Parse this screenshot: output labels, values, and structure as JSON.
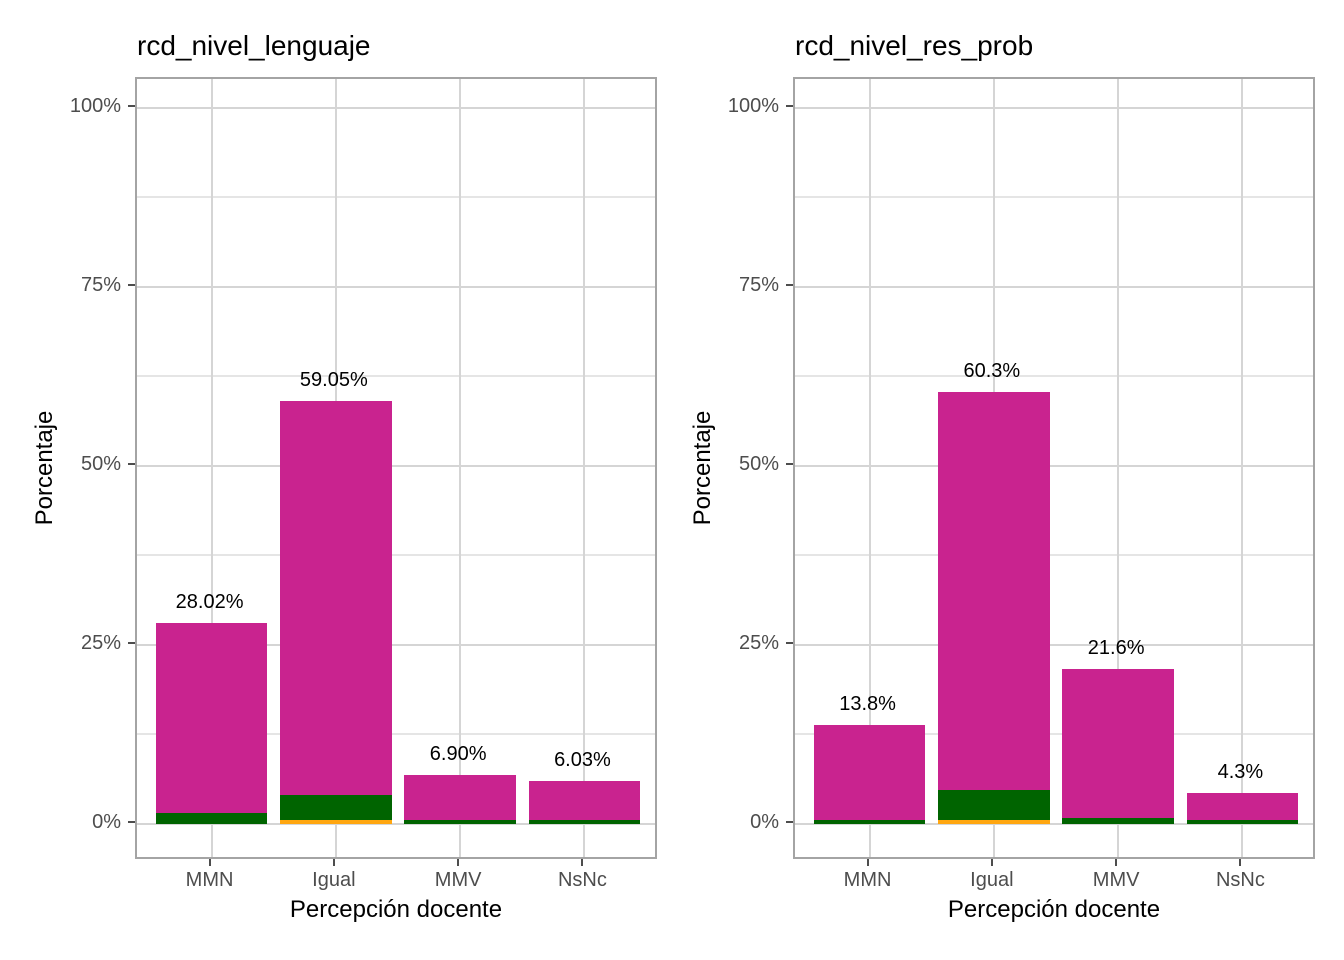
{
  "page": {
    "background": "#ffffff"
  },
  "palette": {
    "magenta": "#c9238f",
    "green": "#006400",
    "orange": "#ffa610",
    "grid_major": "#d5d5d5",
    "grid_minor": "#e5e5e5",
    "panel_border": "#a4a4a4",
    "tick_text": "#4d4d4d",
    "label_text": "#000000"
  },
  "chart_data": [
    {
      "type": "bar",
      "stacked": true,
      "grid": true,
      "legend_position": "none",
      "title": "rcd_nivel_lenguaje",
      "xlabel": "Percepción docente",
      "ylabel": "Porcentaje",
      "ylim": [
        0,
        100
      ],
      "y_ticks": [
        {
          "value": 0,
          "label": "0%"
        },
        {
          "value": 25,
          "label": "25%"
        },
        {
          "value": 50,
          "label": "50%"
        },
        {
          "value": 75,
          "label": "75%"
        },
        {
          "value": 100,
          "label": "100%"
        }
      ],
      "y_minor_ticks": [
        12.5,
        37.5,
        62.5,
        87.5
      ],
      "categories": [
        "MMN",
        "Igual",
        "MMV",
        "NsNc"
      ],
      "series": [
        {
          "name": "segment-orange",
          "color_key": "orange",
          "values": [
            0,
            0.55,
            0,
            0
          ]
        },
        {
          "name": "segment-green",
          "color_key": "green",
          "values": [
            1.55,
            3.5,
            0.6,
            0.6
          ]
        },
        {
          "name": "segment-magenta",
          "color_key": "magenta",
          "values": [
            26.47,
            55.0,
            6.3,
            5.43
          ]
        }
      ],
      "totals": [
        28.02,
        59.05,
        6.9,
        6.03
      ],
      "bar_labels": [
        "28.02%",
        "59.05%",
        "6.90%",
        "6.03%"
      ]
    },
    {
      "type": "bar",
      "stacked": true,
      "grid": true,
      "legend_position": "none",
      "title": "rcd_nivel_res_prob",
      "xlabel": "Percepción docente",
      "ylabel": "Porcentaje",
      "ylim": [
        0,
        100
      ],
      "y_ticks": [
        {
          "value": 0,
          "label": "0%"
        },
        {
          "value": 25,
          "label": "25%"
        },
        {
          "value": 50,
          "label": "50%"
        },
        {
          "value": 75,
          "label": "75%"
        },
        {
          "value": 100,
          "label": "100%"
        }
      ],
      "y_minor_ticks": [
        12.5,
        37.5,
        62.5,
        87.5
      ],
      "categories": [
        "MMN",
        "Igual",
        "MMV",
        "NsNc"
      ],
      "series": [
        {
          "name": "segment-orange",
          "color_key": "orange",
          "values": [
            0,
            0.5,
            0,
            0
          ]
        },
        {
          "name": "segment-green",
          "color_key": "green",
          "values": [
            0.55,
            4.3,
            0.9,
            0.6
          ]
        },
        {
          "name": "segment-magenta",
          "color_key": "magenta",
          "values": [
            13.25,
            55.5,
            20.7,
            3.7
          ]
        }
      ],
      "totals": [
        13.8,
        60.3,
        21.6,
        4.3
      ],
      "bar_labels": [
        "13.8%",
        "60.3%",
        "21.6%",
        "4.3%"
      ]
    }
  ]
}
